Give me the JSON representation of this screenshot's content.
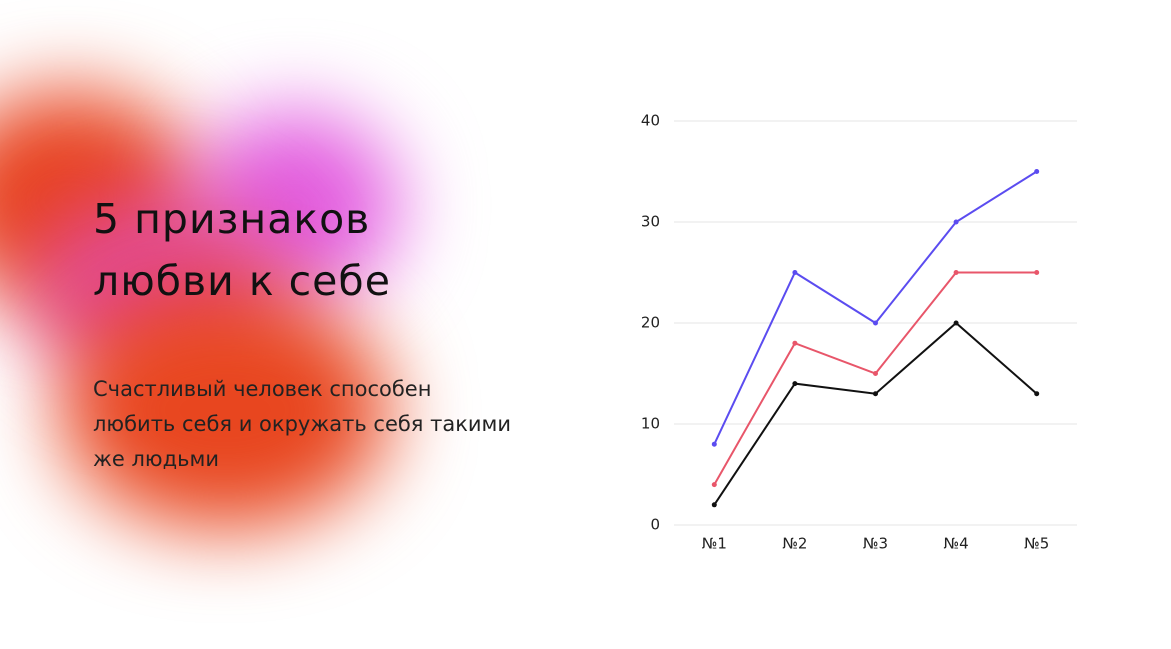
{
  "slide": {
    "title": "5 признаков любви к себе",
    "text": "Счастливый человек способен любить себя и окружать себя такими же людьми"
  },
  "chart_data": {
    "type": "line",
    "categories": [
      "№1",
      "№2",
      "№3",
      "№4",
      "№5"
    ],
    "series": [
      {
        "color": "#5b4cf0",
        "values": [
          8,
          25,
          20,
          30,
          35
        ]
      },
      {
        "color": "#e8566a",
        "values": [
          4,
          18,
          15,
          25,
          25
        ]
      },
      {
        "color": "#111111",
        "values": [
          2,
          14,
          13,
          20,
          13
        ]
      }
    ],
    "ylim": [
      0,
      40
    ],
    "yticks": [
      0,
      10,
      20,
      30,
      40
    ],
    "grid": true
  }
}
